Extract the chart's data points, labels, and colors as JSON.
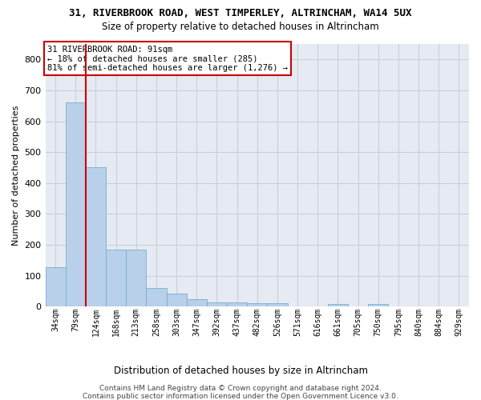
{
  "title1": "31, RIVERBROOK ROAD, WEST TIMPERLEY, ALTRINCHAM, WA14 5UX",
  "title2": "Size of property relative to detached houses in Altrincham",
  "xlabel": "Distribution of detached houses by size in Altrincham",
  "ylabel": "Number of detached properties",
  "categories": [
    "34sqm",
    "79sqm",
    "124sqm",
    "168sqm",
    "213sqm",
    "258sqm",
    "303sqm",
    "347sqm",
    "392sqm",
    "437sqm",
    "482sqm",
    "526sqm",
    "571sqm",
    "616sqm",
    "661sqm",
    "705sqm",
    "750sqm",
    "795sqm",
    "840sqm",
    "884sqm",
    "929sqm"
  ],
  "values": [
    128,
    660,
    452,
    184,
    184,
    60,
    43,
    25,
    13,
    13,
    12,
    10,
    0,
    0,
    8,
    0,
    9,
    0,
    0,
    0,
    0
  ],
  "bar_color": "#b8d0ea",
  "bar_edgecolor": "#7aaecd",
  "vline_x": 1.5,
  "vline_color": "#cc0000",
  "annotation_line1": "31 RIVERBROOK ROAD: 91sqm",
  "annotation_line2": "← 18% of detached houses are smaller (285)",
  "annotation_line3": "81% of semi-detached houses are larger (1,276) →",
  "annotation_box_color": "#cc0000",
  "annotation_bg": "#ffffff",
  "ylim": [
    0,
    850
  ],
  "yticks": [
    0,
    100,
    200,
    300,
    400,
    500,
    600,
    700,
    800
  ],
  "grid_color": "#c8d0dc",
  "bg_color": "#e6eaf2",
  "title1_fontsize": 9.0,
  "title2_fontsize": 8.5,
  "footer1": "Contains HM Land Registry data © Crown copyright and database right 2024.",
  "footer2": "Contains public sector information licensed under the Open Government Licence v3.0."
}
